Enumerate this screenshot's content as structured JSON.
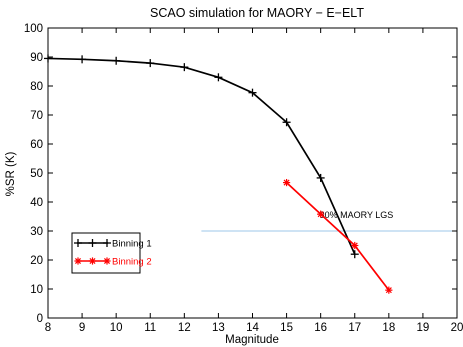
{
  "chart_data": {
    "type": "line",
    "title": "SCAO simulation for MAORY − E−ELT",
    "xlabel": "Magnitude",
    "ylabel": "%SR (K)",
    "xlim": [
      8,
      20
    ],
    "ylim": [
      0,
      100
    ],
    "x_ticks": [
      "8",
      "9",
      "10",
      "11",
      "12",
      "13",
      "14",
      "15",
      "16",
      "17",
      "18",
      "19",
      "20"
    ],
    "y_ticks": [
      "0",
      "10",
      "20",
      "30",
      "40",
      "50",
      "60",
      "70",
      "80",
      "90",
      "100"
    ],
    "grid": false,
    "legend_position": "bottom-left",
    "series": [
      {
        "name": "Binning 1",
        "color": "#000000",
        "marker": "plus",
        "x": [
          8,
          9,
          10,
          11,
          12,
          13,
          14,
          15,
          16,
          17
        ],
        "y": [
          89.5,
          89.2,
          88.7,
          87.9,
          86.5,
          83.0,
          77.7,
          67.5,
          48.3,
          22.0
        ]
      },
      {
        "name": "Binning 2",
        "color": "#ff0000",
        "marker": "star",
        "x": [
          15,
          16,
          17,
          18
        ],
        "y": [
          46.7,
          35.8,
          25.0,
          9.6
        ]
      }
    ],
    "reference_line": {
      "label": "30% MAORY LGS",
      "y": 30,
      "x_start": 12.5,
      "x_end": 20,
      "color": "#9ec7e8"
    }
  }
}
